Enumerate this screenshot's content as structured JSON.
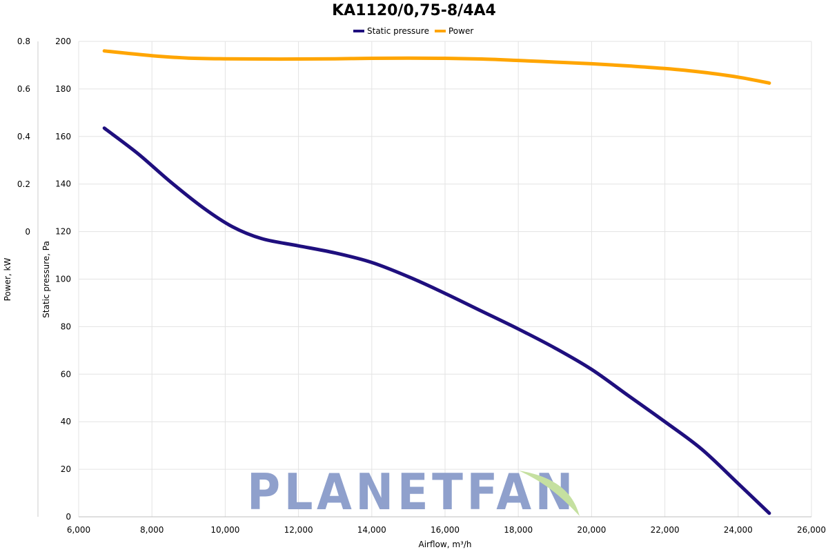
{
  "chart_data": {
    "type": "line",
    "title": "KA1120/0,75-8/4A4",
    "xlabel": "Airflow, m³/h",
    "ylabel": "Static pressure, Pa",
    "y2label": "Power, kW",
    "xlim": [
      6000,
      26000
    ],
    "ylim": [
      0,
      200
    ],
    "y2lim": [
      0,
      0.8
    ],
    "x_ticks": [
      "6,000",
      "8,000",
      "10,000",
      "12,000",
      "14,000",
      "16,000",
      "18,000",
      "20,000",
      "22,000",
      "24,000",
      "26,000"
    ],
    "x_tick_values": [
      6000,
      8000,
      10000,
      12000,
      14000,
      16000,
      18000,
      20000,
      22000,
      24000,
      26000
    ],
    "y_ticks": [
      "0",
      "20",
      "40",
      "60",
      "80",
      "100",
      "120",
      "140",
      "160",
      "180",
      "200"
    ],
    "y_tick_values": [
      0,
      20,
      40,
      60,
      80,
      100,
      120,
      140,
      160,
      180,
      200
    ],
    "y2_ticks": [
      "0",
      "0.2",
      "0.4",
      "0.6",
      "0.8"
    ],
    "y2_tick_values": [
      0,
      0.2,
      0.4,
      0.6,
      0.8
    ],
    "grid": true,
    "legend_position": "top-center",
    "series": [
      {
        "name": "Static pressure",
        "color": "#1f0f7e",
        "axis": "left",
        "x": [
          6700,
          7600,
          8500,
          9400,
          10200,
          11000,
          12000,
          13000,
          14000,
          15000,
          16000,
          17000,
          18000,
          19000,
          20000,
          21000,
          22000,
          23000,
          24000,
          24850
        ],
        "y": [
          163.5,
          153,
          141,
          130,
          122,
          117,
          114,
          111,
          107,
          101,
          94,
          86.5,
          79,
          71,
          62,
          51,
          40,
          28.5,
          14,
          1.5
        ]
      },
      {
        "name": "Power",
        "color": "#ffa500",
        "axis": "right",
        "x": [
          6700,
          8000,
          9000,
          10000,
          11000,
          12000,
          13000,
          14000,
          15000,
          16000,
          17000,
          18000,
          19000,
          20000,
          21000,
          22000,
          23000,
          24000,
          24850
        ],
        "y": [
          0.76,
          0.74,
          0.73,
          0.727,
          0.726,
          0.726,
          0.727,
          0.729,
          0.73,
          0.729,
          0.726,
          0.72,
          0.713,
          0.706,
          0.697,
          0.686,
          0.671,
          0.65,
          0.625
        ]
      }
    ]
  },
  "watermark": {
    "text": "PLANETFAN",
    "color": "#8fa0cc",
    "leaf_color": "#c5e0a0"
  }
}
